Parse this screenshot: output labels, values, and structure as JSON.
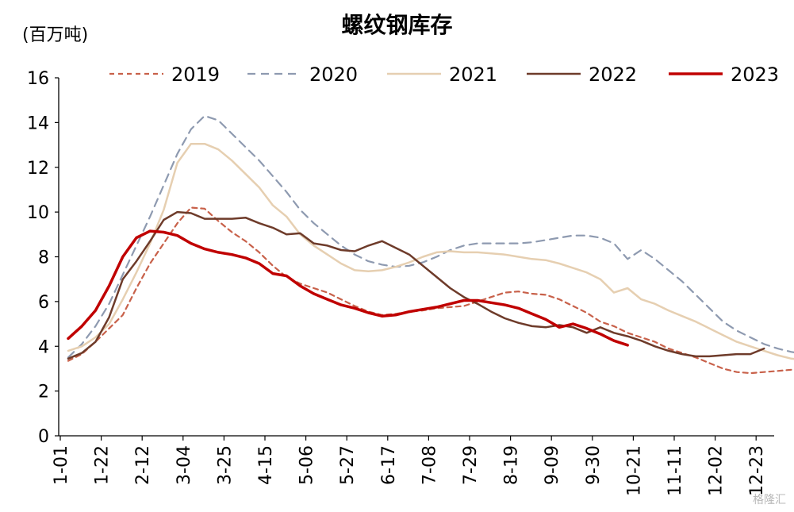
{
  "chart_data": {
    "type": "line",
    "title": "螺纹钢库存",
    "ylabel": "(百万吨)",
    "xlabel": "",
    "ylim": [
      0,
      16
    ],
    "yticks": [
      0,
      2,
      4,
      6,
      8,
      10,
      12,
      14,
      16
    ],
    "xtick_labels": [
      "1-01",
      "1-22",
      "2-12",
      "3-04",
      "3-25",
      "4-15",
      "5-06",
      "5-27",
      "6-17",
      "7-08",
      "7-29",
      "8-19",
      "9-09",
      "9-30",
      "10-21",
      "11-11",
      "12-02",
      "12-23"
    ],
    "legend_position": "top",
    "grid": false,
    "series": [
      {
        "name": "2019",
        "color": "#C8614A",
        "dash": "6,5",
        "width": 2.2,
        "values": [
          3.35,
          3.65,
          4.2,
          4.8,
          5.4,
          6.6,
          7.7,
          8.6,
          9.5,
          10.2,
          10.15,
          9.6,
          9.1,
          8.7,
          8.2,
          7.6,
          7.1,
          6.8,
          6.6,
          6.4,
          6.1,
          5.8,
          5.55,
          5.4,
          5.45,
          5.55,
          5.6,
          5.7,
          5.75,
          5.8,
          6.0,
          6.2,
          6.4,
          6.45,
          6.35,
          6.3,
          6.1,
          5.8,
          5.5,
          5.1,
          4.9,
          4.6,
          4.4,
          4.2,
          3.9,
          3.7,
          3.5,
          3.25,
          3.0,
          2.85,
          2.8,
          2.85,
          2.9,
          2.95,
          3.1
        ]
      },
      {
        "name": "2020",
        "color": "#8E9AB0",
        "dash": "10,7",
        "width": 2.2,
        "values": [
          3.5,
          4.1,
          4.9,
          5.9,
          7.2,
          8.5,
          9.8,
          11.2,
          12.6,
          13.7,
          14.3,
          14.1,
          13.5,
          12.9,
          12.3,
          11.6,
          10.9,
          10.1,
          9.5,
          9.0,
          8.5,
          8.1,
          7.8,
          7.65,
          7.55,
          7.6,
          7.75,
          8.0,
          8.3,
          8.5,
          8.6,
          8.6,
          8.6,
          8.6,
          8.65,
          8.75,
          8.85,
          8.95,
          8.95,
          8.85,
          8.6,
          7.9,
          8.3,
          7.9,
          7.4,
          6.9,
          6.3,
          5.7,
          5.1,
          4.7,
          4.4,
          4.1,
          3.9,
          3.75,
          3.65
        ]
      },
      {
        "name": "2021",
        "color": "#E6CFB1",
        "dash": "",
        "width": 2.5,
        "values": [
          3.8,
          4.0,
          4.4,
          5.0,
          6.1,
          7.3,
          8.6,
          10.1,
          12.2,
          13.05,
          13.05,
          12.8,
          12.3,
          11.7,
          11.1,
          10.3,
          9.8,
          9.0,
          8.5,
          8.1,
          7.7,
          7.4,
          7.35,
          7.4,
          7.55,
          7.75,
          8.0,
          8.2,
          8.25,
          8.2,
          8.2,
          8.15,
          8.1,
          8.0,
          7.9,
          7.85,
          7.7,
          7.5,
          7.3,
          7.0,
          6.4,
          6.6,
          6.1,
          5.9,
          5.6,
          5.35,
          5.1,
          4.8,
          4.5,
          4.2,
          4.0,
          3.8,
          3.6,
          3.45,
          3.4
        ]
      },
      {
        "name": "2022",
        "color": "#6E3B2A",
        "dash": "",
        "width": 2.5,
        "values": [
          3.45,
          3.7,
          4.2,
          5.3,
          7.0,
          7.8,
          8.7,
          9.65,
          10.0,
          9.95,
          9.7,
          9.7,
          9.7,
          9.75,
          9.5,
          9.3,
          9.0,
          9.05,
          8.6,
          8.5,
          8.3,
          8.25,
          8.5,
          8.7,
          8.4,
          8.1,
          7.6,
          7.1,
          6.6,
          6.2,
          5.9,
          5.55,
          5.25,
          5.05,
          4.9,
          4.85,
          4.95,
          4.85,
          4.6,
          4.85,
          4.6,
          4.45,
          4.25,
          4.0,
          3.8,
          3.65,
          3.55,
          3.55,
          3.6,
          3.65,
          3.65,
          3.9
        ]
      },
      {
        "name": "2023",
        "color": "#C00000",
        "dash": "",
        "width": 3.5,
        "values": [
          4.35,
          4.9,
          5.6,
          6.7,
          8.0,
          8.85,
          9.15,
          9.1,
          8.95,
          8.6,
          8.35,
          8.2,
          8.1,
          7.95,
          7.7,
          7.25,
          7.15,
          6.7,
          6.35,
          6.1,
          5.85,
          5.7,
          5.5,
          5.35,
          5.4,
          5.55,
          5.65,
          5.75,
          5.9,
          6.05,
          6.05,
          5.95,
          5.85,
          5.7,
          5.45,
          5.2,
          4.85,
          5.0,
          4.8,
          4.55,
          4.25,
          4.05
        ]
      }
    ]
  },
  "watermark": "格隆汇"
}
